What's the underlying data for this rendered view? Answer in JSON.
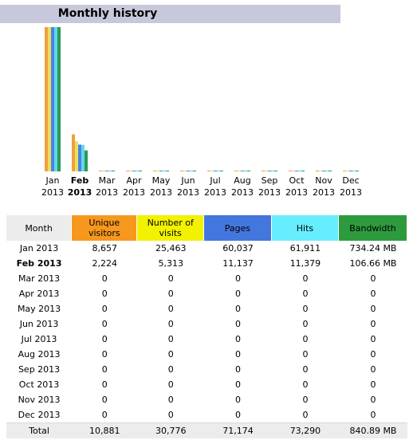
{
  "section_title": "Monthly history",
  "chart_data": {
    "type": "bar",
    "categories": [
      "Jan 2013",
      "Feb 2013",
      "Mar 2013",
      "Apr 2013",
      "May 2013",
      "Jun 2013",
      "Jul 2013",
      "Aug 2013",
      "Sep 2013",
      "Oct 2013",
      "Nov 2013",
      "Dec 2013"
    ],
    "series": [
      {
        "name": "Unique visitors",
        "color": "#f0a040",
        "values": [
          8657,
          2224,
          0,
          0,
          0,
          0,
          0,
          0,
          0,
          0,
          0,
          0
        ]
      },
      {
        "name": "Number of visits",
        "color": "#e8e060",
        "values": [
          25463,
          5313,
          0,
          0,
          0,
          0,
          0,
          0,
          0,
          0,
          0,
          0
        ]
      },
      {
        "name": "Pages",
        "color": "#5080e8",
        "values": [
          60037,
          11137,
          0,
          0,
          0,
          0,
          0,
          0,
          0,
          0,
          0,
          0
        ]
      },
      {
        "name": "Hits",
        "color": "#60d8e8",
        "values": [
          61911,
          11379,
          0,
          0,
          0,
          0,
          0,
          0,
          0,
          0,
          0,
          0
        ]
      },
      {
        "name": "Bandwidth",
        "color": "#2a9a58",
        "values": [
          734.24,
          106.66,
          0,
          0,
          0,
          0,
          0,
          0,
          0,
          0,
          0,
          0
        ]
      }
    ],
    "bold_category": "Feb 2013"
  },
  "x_labels": [
    {
      "month": "Jan",
      "year": "2013"
    },
    {
      "month": "Feb",
      "year": "2013"
    },
    {
      "month": "Mar",
      "year": "2013"
    },
    {
      "month": "Apr",
      "year": "2013"
    },
    {
      "month": "May",
      "year": "2013"
    },
    {
      "month": "Jun",
      "year": "2013"
    },
    {
      "month": "Jul",
      "year": "2013"
    },
    {
      "month": "Aug",
      "year": "2013"
    },
    {
      "month": "Sep",
      "year": "2013"
    },
    {
      "month": "Oct",
      "year": "2013"
    },
    {
      "month": "Nov",
      "year": "2013"
    },
    {
      "month": "Dec",
      "year": "2013"
    }
  ],
  "table": {
    "headers": {
      "month": "Month",
      "unique": "Unique visitors",
      "visits": "Number of visits",
      "pages": "Pages",
      "hits": "Hits",
      "bandwidth": "Bandwidth"
    },
    "header_colors": {
      "month": "#ececec",
      "unique": "#f7981e",
      "visits": "#f2f200",
      "pages": "#4477dd",
      "hits": "#66eeff",
      "bandwidth": "#2e9a3e"
    },
    "rows": [
      {
        "month": "Jan 2013",
        "unique": "8,657",
        "visits": "25,463",
        "pages": "60,037",
        "hits": "61,911",
        "bandwidth": "734.24 MB",
        "bold": false
      },
      {
        "month": "Feb 2013",
        "unique": "2,224",
        "visits": "5,313",
        "pages": "11,137",
        "hits": "11,379",
        "bandwidth": "106.66 MB",
        "bold": true
      },
      {
        "month": "Mar 2013",
        "unique": "0",
        "visits": "0",
        "pages": "0",
        "hits": "0",
        "bandwidth": "0",
        "bold": false
      },
      {
        "month": "Apr 2013",
        "unique": "0",
        "visits": "0",
        "pages": "0",
        "hits": "0",
        "bandwidth": "0",
        "bold": false
      },
      {
        "month": "May 2013",
        "unique": "0",
        "visits": "0",
        "pages": "0",
        "hits": "0",
        "bandwidth": "0",
        "bold": false
      },
      {
        "month": "Jun 2013",
        "unique": "0",
        "visits": "0",
        "pages": "0",
        "hits": "0",
        "bandwidth": "0",
        "bold": false
      },
      {
        "month": "Jul 2013",
        "unique": "0",
        "visits": "0",
        "pages": "0",
        "hits": "0",
        "bandwidth": "0",
        "bold": false
      },
      {
        "month": "Aug 2013",
        "unique": "0",
        "visits": "0",
        "pages": "0",
        "hits": "0",
        "bandwidth": "0",
        "bold": false
      },
      {
        "month": "Sep 2013",
        "unique": "0",
        "visits": "0",
        "pages": "0",
        "hits": "0",
        "bandwidth": "0",
        "bold": false
      },
      {
        "month": "Oct 2013",
        "unique": "0",
        "visits": "0",
        "pages": "0",
        "hits": "0",
        "bandwidth": "0",
        "bold": false
      },
      {
        "month": "Nov 2013",
        "unique": "0",
        "visits": "0",
        "pages": "0",
        "hits": "0",
        "bandwidth": "0",
        "bold": false
      },
      {
        "month": "Dec 2013",
        "unique": "0",
        "visits": "0",
        "pages": "0",
        "hits": "0",
        "bandwidth": "0",
        "bold": false
      }
    ],
    "total": {
      "month": "Total",
      "unique": "10,881",
      "visits": "30,776",
      "pages": "71,174",
      "hits": "73,290",
      "bandwidth": "840.89 MB"
    }
  }
}
